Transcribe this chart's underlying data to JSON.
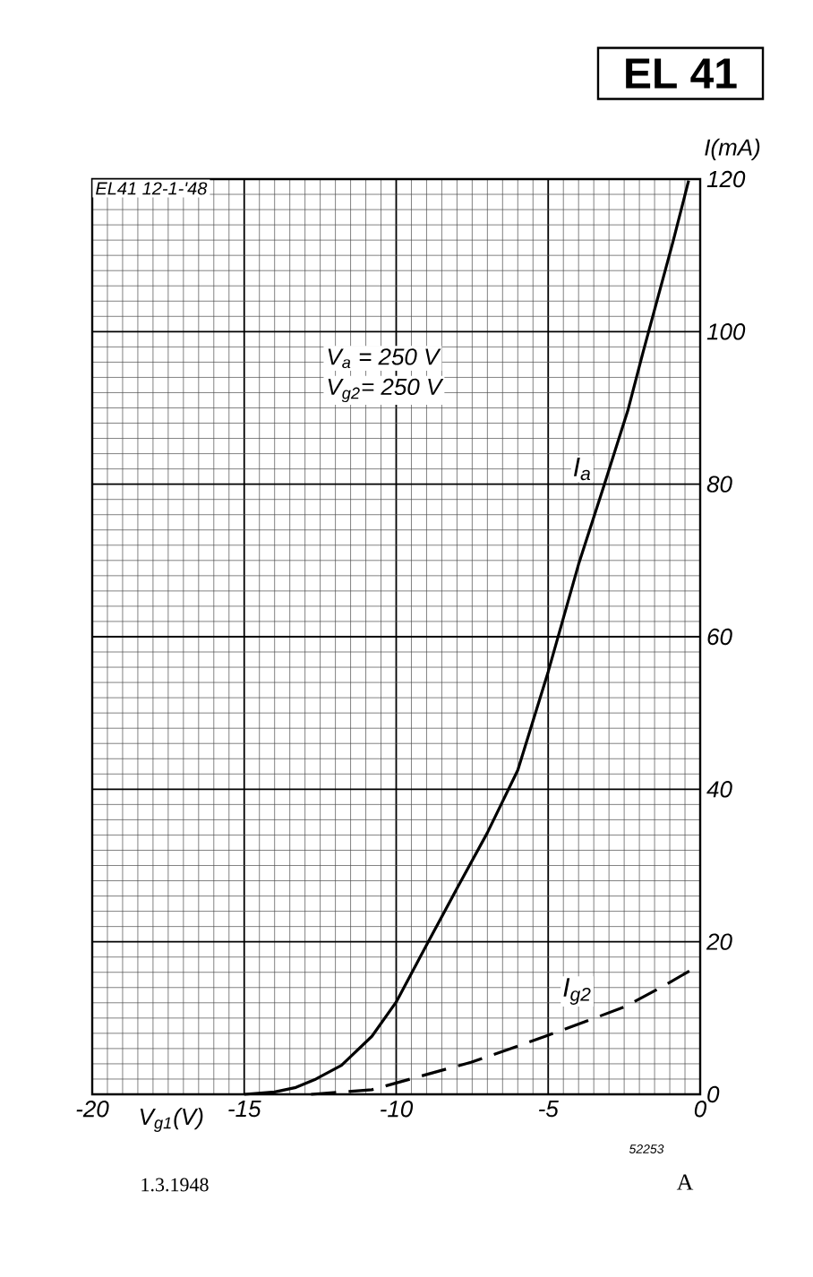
{
  "chart_data": {
    "type": "line",
    "title": "EL 41",
    "xlabel": "V$_{g1}$(V)",
    "ylabel": "I(mA)",
    "xlim": [
      -20,
      0
    ],
    "ylim": [
      0,
      120
    ],
    "xticks": [
      -20,
      -15,
      -10,
      -5,
      0
    ],
    "yticks": [
      0,
      20,
      40,
      60,
      80,
      100,
      120
    ],
    "grid": true,
    "series": [
      {
        "name": "I$_{a}$",
        "color": "#000000",
        "line_style": "solid",
        "x": [
          -15,
          -14,
          -13.3,
          -12.64,
          -11.8,
          -10.8,
          -10.0,
          -8.97,
          -8.0,
          -7.0,
          -6.0,
          -5.0,
          -4.0,
          -3.15,
          -2.37,
          -1.88,
          -0.9,
          -0.38
        ],
        "values": [
          0,
          0.3,
          0.9,
          2.0,
          3.8,
          7.6,
          12.1,
          19.8,
          27,
          34.3,
          42.5,
          55.4,
          69.5,
          80,
          89.8,
          97.3,
          111.7,
          119.8
        ]
      },
      {
        "name": "I$_{g2}$",
        "color": "#000000",
        "line_style": "dashed",
        "x": [
          -12.8,
          -10.8,
          -9.0,
          -7.54,
          -6.3,
          -5.1,
          -3.8,
          -2.47,
          -1.2,
          0
        ],
        "values": [
          0,
          0.6,
          2.6,
          4.2,
          5.9,
          7.6,
          9.5,
          11.5,
          14.2,
          17
        ]
      }
    ],
    "annotations": [
      "EL41 12-1-'48",
      "V$_{a}$ = 250 V",
      "V$_{g2}$= 250 V",
      "52253",
      "1.3.1948",
      "A"
    ]
  }
}
